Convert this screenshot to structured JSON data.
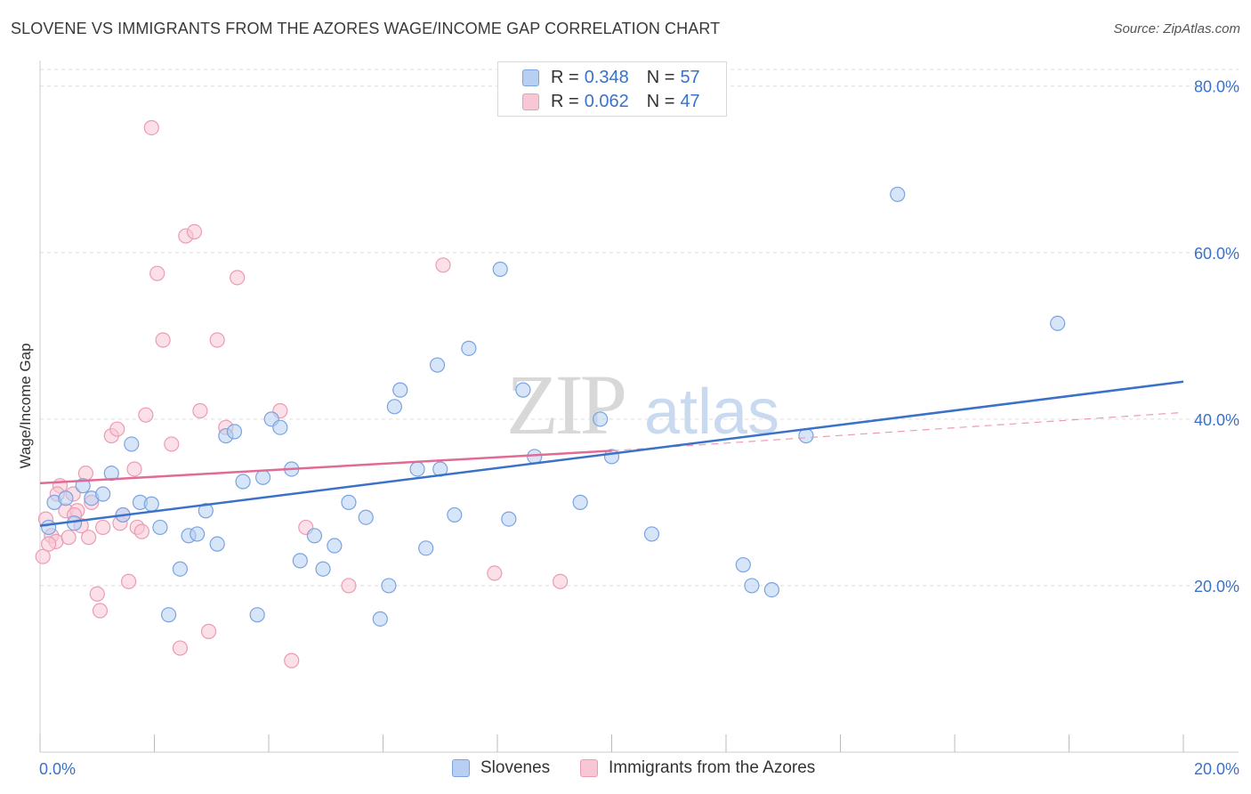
{
  "title": "SLOVENE VS IMMIGRANTS FROM THE AZORES WAGE/INCOME GAP CORRELATION CHART",
  "source": "Source: ZipAtlas.com",
  "watermark": {
    "zip": "ZIP",
    "atlas": "atlas"
  },
  "legend": {
    "r_label": "R = ",
    "n_label": "N = ",
    "rows": [
      {
        "r": "0.348",
        "n": "57"
      },
      {
        "r": "0.062",
        "n": "47"
      }
    ]
  },
  "chart_data": {
    "type": "scatter",
    "title": "SLOVENE VS IMMIGRANTS FROM THE AZORES WAGE/INCOME GAP CORRELATION CHART",
    "xlabel": "",
    "ylabel": "Wage/Income Gap",
    "xlim": [
      0,
      20
    ],
    "ylim": [
      0,
      82
    ],
    "x_ticks": [
      0,
      2,
      4,
      6,
      8,
      10,
      12,
      14,
      16,
      18,
      20
    ],
    "x_tick_labels": [
      {
        "value": 0,
        "label": "0.0%"
      },
      {
        "value": 20,
        "label": "20.0%"
      }
    ],
    "y_ticks": [
      {
        "value": 20,
        "label": "20.0%"
      },
      {
        "value": 40,
        "label": "40.0%"
      },
      {
        "value": 60,
        "label": "60.0%"
      },
      {
        "value": 80,
        "label": "80.0%"
      }
    ],
    "grid": true,
    "legend_position": "top-center",
    "colors": {
      "blue": "#3a72c9",
      "pink": "#e26b94",
      "blue_fill": "#b7cff2",
      "pink_fill": "#f8c7d6",
      "tick": "#3a72c9"
    },
    "series": [
      {
        "name": "Slovenes",
        "r": 0.348,
        "n": 57,
        "trend": {
          "x": [
            0,
            20
          ],
          "y": [
            27.2,
            44.5
          ]
        },
        "points": [
          {
            "x": 0.15,
            "y": 27.0
          },
          {
            "x": 0.25,
            "y": 30.0
          },
          {
            "x": 0.45,
            "y": 30.5
          },
          {
            "x": 0.6,
            "y": 27.5
          },
          {
            "x": 0.75,
            "y": 32.0
          },
          {
            "x": 0.9,
            "y": 30.5
          },
          {
            "x": 1.1,
            "y": 31.0
          },
          {
            "x": 1.25,
            "y": 33.5
          },
          {
            "x": 1.45,
            "y": 28.5
          },
          {
            "x": 1.6,
            "y": 37.0
          },
          {
            "x": 1.75,
            "y": 30.0
          },
          {
            "x": 1.95,
            "y": 29.8
          },
          {
            "x": 2.1,
            "y": 27.0
          },
          {
            "x": 2.25,
            "y": 16.5
          },
          {
            "x": 2.45,
            "y": 22.0
          },
          {
            "x": 2.6,
            "y": 26.0
          },
          {
            "x": 2.75,
            "y": 26.2
          },
          {
            "x": 2.9,
            "y": 29.0
          },
          {
            "x": 3.1,
            "y": 25.0
          },
          {
            "x": 3.25,
            "y": 38.0
          },
          {
            "x": 3.4,
            "y": 38.5
          },
          {
            "x": 3.55,
            "y": 32.5
          },
          {
            "x": 3.8,
            "y": 16.5
          },
          {
            "x": 3.9,
            "y": 33.0
          },
          {
            "x": 4.05,
            "y": 40.0
          },
          {
            "x": 4.2,
            "y": 39.0
          },
          {
            "x": 4.4,
            "y": 34.0
          },
          {
            "x": 4.55,
            "y": 23.0
          },
          {
            "x": 4.8,
            "y": 26.0
          },
          {
            "x": 4.95,
            "y": 22.0
          },
          {
            "x": 5.15,
            "y": 24.8
          },
          {
            "x": 5.4,
            "y": 30.0
          },
          {
            "x": 5.7,
            "y": 28.2
          },
          {
            "x": 5.95,
            "y": 16.0
          },
          {
            "x": 6.1,
            "y": 20.0
          },
          {
            "x": 6.2,
            "y": 41.5
          },
          {
            "x": 6.3,
            "y": 43.5
          },
          {
            "x": 6.6,
            "y": 34.0
          },
          {
            "x": 6.75,
            "y": 24.5
          },
          {
            "x": 6.95,
            "y": 46.5
          },
          {
            "x": 7.0,
            "y": 34.0
          },
          {
            "x": 7.25,
            "y": 28.5
          },
          {
            "x": 7.5,
            "y": 48.5
          },
          {
            "x": 8.05,
            "y": 58.0
          },
          {
            "x": 8.2,
            "y": 28.0
          },
          {
            "x": 8.45,
            "y": 43.5
          },
          {
            "x": 8.65,
            "y": 35.5
          },
          {
            "x": 9.45,
            "y": 30.0
          },
          {
            "x": 9.8,
            "y": 40.0
          },
          {
            "x": 10.0,
            "y": 35.5
          },
          {
            "x": 10.7,
            "y": 26.2
          },
          {
            "x": 12.3,
            "y": 22.5
          },
          {
            "x": 12.45,
            "y": 20.0
          },
          {
            "x": 12.8,
            "y": 19.5
          },
          {
            "x": 13.4,
            "y": 38.0
          },
          {
            "x": 15.0,
            "y": 67.0
          },
          {
            "x": 17.8,
            "y": 51.5
          }
        ]
      },
      {
        "name": "Immigrants from the Azores",
        "r": 0.062,
        "n": 47,
        "trend": {
          "x": [
            0,
            10
          ],
          "y": [
            32.3,
            36.2
          ]
        },
        "trend_extension": {
          "x": [
            10,
            20
          ],
          "y": [
            36.2,
            40.8
          ]
        },
        "points": [
          {
            "x": 0.05,
            "y": 23.5
          },
          {
            "x": 0.1,
            "y": 28.0
          },
          {
            "x": 0.2,
            "y": 26.0
          },
          {
            "x": 0.28,
            "y": 25.3
          },
          {
            "x": 0.35,
            "y": 32.0
          },
          {
            "x": 0.45,
            "y": 29.0
          },
          {
            "x": 0.5,
            "y": 25.8
          },
          {
            "x": 0.58,
            "y": 31.0
          },
          {
            "x": 0.65,
            "y": 29.0
          },
          {
            "x": 0.72,
            "y": 27.2
          },
          {
            "x": 0.8,
            "y": 33.5
          },
          {
            "x": 0.85,
            "y": 25.8
          },
          {
            "x": 0.9,
            "y": 30.0
          },
          {
            "x": 1.0,
            "y": 19.0
          },
          {
            "x": 1.05,
            "y": 17.0
          },
          {
            "x": 1.1,
            "y": 27.0
          },
          {
            "x": 1.25,
            "y": 38.0
          },
          {
            "x": 1.35,
            "y": 38.8
          },
          {
            "x": 1.4,
            "y": 27.5
          },
          {
            "x": 1.45,
            "y": 28.5
          },
          {
            "x": 1.55,
            "y": 20.5
          },
          {
            "x": 1.65,
            "y": 34.0
          },
          {
            "x": 1.7,
            "y": 27.0
          },
          {
            "x": 1.78,
            "y": 26.5
          },
          {
            "x": 1.85,
            "y": 40.5
          },
          {
            "x": 1.95,
            "y": 75.0
          },
          {
            "x": 2.05,
            "y": 57.5
          },
          {
            "x": 2.15,
            "y": 49.5
          },
          {
            "x": 2.3,
            "y": 37.0
          },
          {
            "x": 2.45,
            "y": 12.5
          },
          {
            "x": 2.55,
            "y": 62.0
          },
          {
            "x": 2.7,
            "y": 62.5
          },
          {
            "x": 2.8,
            "y": 41.0
          },
          {
            "x": 2.95,
            "y": 14.5
          },
          {
            "x": 3.1,
            "y": 49.5
          },
          {
            "x": 3.25,
            "y": 39.0
          },
          {
            "x": 3.45,
            "y": 57.0
          },
          {
            "x": 4.2,
            "y": 41.0
          },
          {
            "x": 4.4,
            "y": 11.0
          },
          {
            "x": 4.65,
            "y": 27.0
          },
          {
            "x": 5.4,
            "y": 20.0
          },
          {
            "x": 7.05,
            "y": 58.5
          },
          {
            "x": 7.95,
            "y": 21.5
          },
          {
            "x": 9.1,
            "y": 20.5
          },
          {
            "x": 0.3,
            "y": 31.0
          },
          {
            "x": 0.15,
            "y": 25.0
          },
          {
            "x": 0.6,
            "y": 28.5
          }
        ]
      }
    ]
  }
}
